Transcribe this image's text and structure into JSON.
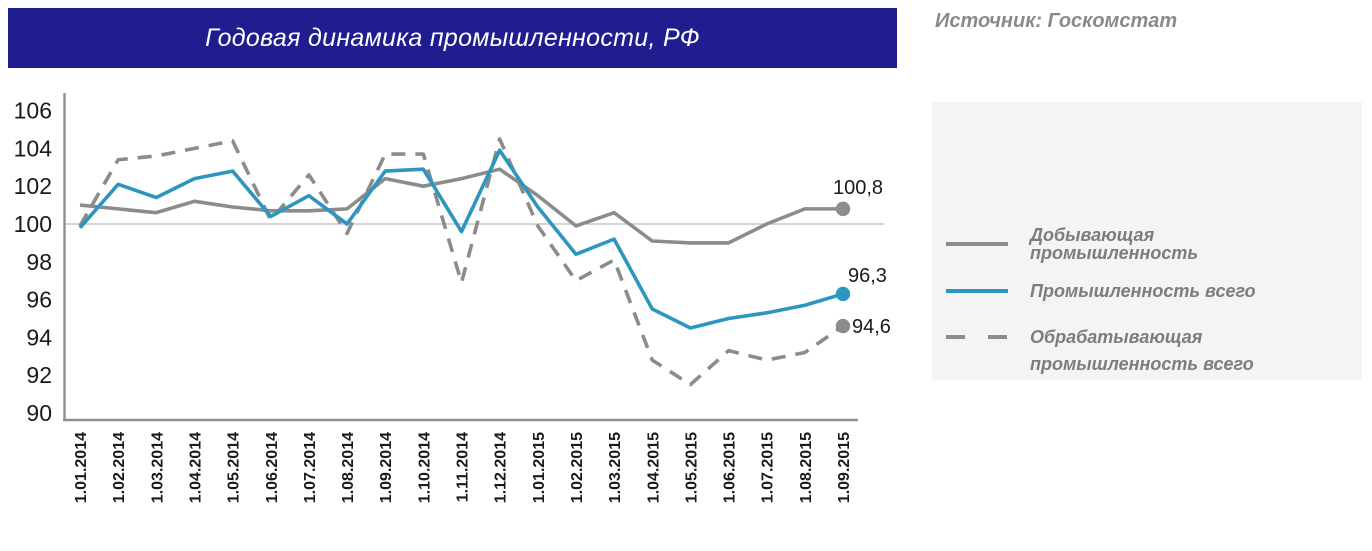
{
  "header": {
    "title": "Годовая динамика промышленности, РФ",
    "source_label": "Источник: Госкомстат"
  },
  "colors": {
    "banner_bg": "#201d8f",
    "banner_text": "#ffffff",
    "accent_blue": "#2d96c0",
    "line_gray": "#8c8c8c",
    "axis_gray": "#8f8f8f",
    "grid_gray": "#bcbcbc",
    "text_dark": "#1a1a1a",
    "muted_text": "#7d7d7d",
    "legend_bg": "#f4f4f5"
  },
  "legend": {
    "items": [
      {
        "label": "Добывающая промышленность",
        "style": "solid",
        "color": "#8c8c8c"
      },
      {
        "label": "Промышленность всего",
        "style": "solid",
        "color": "#2d96c0"
      },
      {
        "label": "Обрабатывающая промышленность всего",
        "style": "dashed",
        "color": "#8c8c8c"
      }
    ]
  },
  "chart_data": {
    "type": "line",
    "title": "Годовая динамика промышленности, РФ",
    "xlabel": "",
    "ylabel": "",
    "ylim": [
      90,
      106
    ],
    "yticks": [
      106,
      104,
      102,
      100,
      98,
      96,
      94,
      92,
      90
    ],
    "gridline_at": 100,
    "grid": "single-horizontal-at-100",
    "legend_position": "right",
    "categories": [
      "1.01.2014",
      "1.02.2014",
      "1.03.2014",
      "1.04.2014",
      "1.05.2014",
      "1.06.2014",
      "1.07.2014",
      "1.08.2014",
      "1.09.2014",
      "1.10.2014",
      "1.11.2014",
      "1.12.2014",
      "1.01.2015",
      "1.02.2015",
      "1.03.2015",
      "1.04.2015",
      "1.05.2015",
      "1.06.2015",
      "1.07.2015",
      "1.08.2015",
      "1.09.2015"
    ],
    "series": [
      {
        "name": "Добывающая промышленность",
        "color": "#8c8c8c",
        "dash": false,
        "end_label": "100,8",
        "end_marker": true,
        "values": [
          101.0,
          100.8,
          100.6,
          101.2,
          100.9,
          100.7,
          100.7,
          100.8,
          102.4,
          102.0,
          102.4,
          102.9,
          101.5,
          99.9,
          100.6,
          99.1,
          99.0,
          99.0,
          100.0,
          100.8,
          100.8
        ]
      },
      {
        "name": "Промышленность всего",
        "color": "#2d96c0",
        "dash": false,
        "end_label": "96,3",
        "end_marker": true,
        "values": [
          99.8,
          102.1,
          101.4,
          102.4,
          102.8,
          100.4,
          101.5,
          100.0,
          102.8,
          102.9,
          99.6,
          103.9,
          100.9,
          98.4,
          99.2,
          95.5,
          94.5,
          95.0,
          95.3,
          95.7,
          96.3
        ]
      },
      {
        "name": "Обрабатывающая промышленность всего",
        "color": "#8c8c8c",
        "dash": true,
        "end_label": "94,6",
        "end_marker": true,
        "values": [
          99.9,
          103.4,
          103.6,
          104.0,
          104.4,
          100.2,
          102.6,
          99.5,
          103.7,
          103.7,
          96.9,
          104.5,
          99.9,
          97.0,
          98.1,
          92.8,
          91.5,
          93.3,
          92.8,
          93.2,
          94.6
        ]
      }
    ]
  }
}
